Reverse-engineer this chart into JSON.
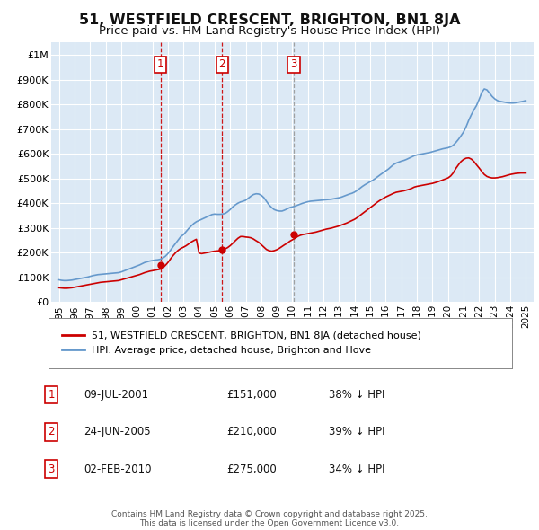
{
  "title": "51, WESTFIELD CRESCENT, BRIGHTON, BN1 8JA",
  "subtitle": "Price paid vs. HM Land Registry's House Price Index (HPI)",
  "title_fontsize": 11.5,
  "subtitle_fontsize": 9.5,
  "background_color": "#ffffff",
  "plot_bg_color": "#dce9f5",
  "grid_color": "#ffffff",
  "xlim": [
    1994.5,
    2025.5
  ],
  "ylim": [
    0,
    1050000
  ],
  "yticks": [
    0,
    100000,
    200000,
    300000,
    400000,
    500000,
    600000,
    700000,
    800000,
    900000,
    1000000
  ],
  "ytick_labels": [
    "£0",
    "£100K",
    "£200K",
    "£300K",
    "£400K",
    "£500K",
    "£600K",
    "£700K",
    "£800K",
    "£900K",
    "£1M"
  ],
  "xticks": [
    1995,
    1996,
    1997,
    1998,
    1999,
    2000,
    2001,
    2002,
    2003,
    2004,
    2005,
    2006,
    2007,
    2008,
    2009,
    2010,
    2011,
    2012,
    2013,
    2014,
    2015,
    2016,
    2017,
    2018,
    2019,
    2020,
    2021,
    2022,
    2023,
    2024,
    2025
  ],
  "transactions": [
    {
      "num": 1,
      "date": "09-JUL-2001",
      "year": 2001.52,
      "price": 151000,
      "pct": "38%",
      "dir": "↓"
    },
    {
      "num": 2,
      "date": "24-JUN-2005",
      "year": 2005.48,
      "price": 210000,
      "pct": "39%",
      "dir": "↓"
    },
    {
      "num": 3,
      "date": "02-FEB-2010",
      "year": 2010.09,
      "price": 275000,
      "pct": "34%",
      "dir": "↓"
    }
  ],
  "legend_red_label": "51, WESTFIELD CRESCENT, BRIGHTON, BN1 8JA (detached house)",
  "legend_blue_label": "HPI: Average price, detached house, Brighton and Hove",
  "footer_text": "Contains HM Land Registry data © Crown copyright and database right 2025.\nThis data is licensed under the Open Government Licence v3.0.",
  "red_color": "#cc0000",
  "blue_color": "#6699cc",
  "marker_box_color": "#cc0000",
  "dashed_color": "#cc0000",
  "dashed3_color": "#999999",
  "hpi_years": [
    1995.0,
    1995.17,
    1995.33,
    1995.5,
    1995.67,
    1995.83,
    1996.0,
    1996.17,
    1996.33,
    1996.5,
    1996.67,
    1996.83,
    1997.0,
    1997.17,
    1997.33,
    1997.5,
    1997.67,
    1997.83,
    1998.0,
    1998.17,
    1998.33,
    1998.5,
    1998.67,
    1998.83,
    1999.0,
    1999.17,
    1999.33,
    1999.5,
    1999.67,
    1999.83,
    2000.0,
    2000.17,
    2000.33,
    2000.5,
    2000.67,
    2000.83,
    2001.0,
    2001.17,
    2001.33,
    2001.5,
    2001.67,
    2001.83,
    2002.0,
    2002.17,
    2002.33,
    2002.5,
    2002.67,
    2002.83,
    2003.0,
    2003.17,
    2003.33,
    2003.5,
    2003.67,
    2003.83,
    2004.0,
    2004.17,
    2004.33,
    2004.5,
    2004.67,
    2004.83,
    2005.0,
    2005.17,
    2005.33,
    2005.5,
    2005.67,
    2005.83,
    2006.0,
    2006.17,
    2006.33,
    2006.5,
    2006.67,
    2006.83,
    2007.0,
    2007.17,
    2007.33,
    2007.5,
    2007.67,
    2007.83,
    2008.0,
    2008.17,
    2008.33,
    2008.5,
    2008.67,
    2008.83,
    2009.0,
    2009.17,
    2009.33,
    2009.5,
    2009.67,
    2009.83,
    2010.0,
    2010.17,
    2010.33,
    2010.5,
    2010.67,
    2010.83,
    2011.0,
    2011.17,
    2011.33,
    2011.5,
    2011.67,
    2011.83,
    2012.0,
    2012.17,
    2012.33,
    2012.5,
    2012.67,
    2012.83,
    2013.0,
    2013.17,
    2013.33,
    2013.5,
    2013.67,
    2013.83,
    2014.0,
    2014.17,
    2014.33,
    2014.5,
    2014.67,
    2014.83,
    2015.0,
    2015.17,
    2015.33,
    2015.5,
    2015.67,
    2015.83,
    2016.0,
    2016.17,
    2016.33,
    2016.5,
    2016.67,
    2016.83,
    2017.0,
    2017.17,
    2017.33,
    2017.5,
    2017.67,
    2017.83,
    2018.0,
    2018.17,
    2018.33,
    2018.5,
    2018.67,
    2018.83,
    2019.0,
    2019.17,
    2019.33,
    2019.5,
    2019.67,
    2019.83,
    2020.0,
    2020.17,
    2020.33,
    2020.5,
    2020.67,
    2020.83,
    2021.0,
    2021.17,
    2021.33,
    2021.5,
    2021.67,
    2021.83,
    2022.0,
    2022.17,
    2022.33,
    2022.5,
    2022.67,
    2022.83,
    2023.0,
    2023.17,
    2023.33,
    2023.5,
    2023.67,
    2023.83,
    2024.0,
    2024.17,
    2024.33,
    2024.5,
    2024.67,
    2024.83,
    2025.0
  ],
  "hpi_values": [
    90000,
    88000,
    87000,
    87000,
    88000,
    89000,
    91000,
    93000,
    95000,
    97000,
    99000,
    101000,
    104000,
    107000,
    109000,
    111000,
    112000,
    113000,
    114000,
    115000,
    116000,
    117000,
    118000,
    119000,
    122000,
    126000,
    130000,
    134000,
    138000,
    142000,
    146000,
    150000,
    155000,
    160000,
    163000,
    166000,
    168000,
    170000,
    171000,
    173000,
    178000,
    185000,
    196000,
    210000,
    224000,
    238000,
    252000,
    265000,
    273000,
    285000,
    297000,
    308000,
    318000,
    325000,
    330000,
    335000,
    340000,
    345000,
    350000,
    354000,
    356000,
    355000,
    355000,
    356000,
    358000,
    365000,
    374000,
    385000,
    393000,
    400000,
    405000,
    408000,
    412000,
    420000,
    428000,
    435000,
    438000,
    437000,
    432000,
    422000,
    408000,
    393000,
    382000,
    374000,
    370000,
    368000,
    368000,
    372000,
    377000,
    382000,
    385000,
    388000,
    392000,
    396000,
    400000,
    403000,
    406000,
    408000,
    409000,
    410000,
    411000,
    412000,
    413000,
    414000,
    415000,
    416000,
    418000,
    420000,
    422000,
    425000,
    429000,
    433000,
    437000,
    440000,
    445000,
    452000,
    460000,
    468000,
    475000,
    481000,
    487000,
    493000,
    500000,
    508000,
    516000,
    523000,
    530000,
    538000,
    547000,
    556000,
    562000,
    566000,
    570000,
    573000,
    577000,
    582000,
    587000,
    592000,
    595000,
    597000,
    599000,
    601000,
    603000,
    605000,
    608000,
    611000,
    614000,
    617000,
    620000,
    622000,
    624000,
    628000,
    634000,
    645000,
    658000,
    672000,
    688000,
    710000,
    735000,
    758000,
    778000,
    795000,
    820000,
    848000,
    862000,
    858000,
    845000,
    832000,
    822000,
    815000,
    812000,
    810000,
    808000,
    806000,
    805000,
    805000,
    806000,
    808000,
    810000,
    812000,
    815000
  ],
  "red_years": [
    1995.0,
    1995.17,
    1995.33,
    1995.5,
    1995.67,
    1995.83,
    1996.0,
    1996.17,
    1996.33,
    1996.5,
    1996.67,
    1996.83,
    1997.0,
    1997.17,
    1997.33,
    1997.5,
    1997.67,
    1997.83,
    1998.0,
    1998.17,
    1998.33,
    1998.5,
    1998.67,
    1998.83,
    1999.0,
    1999.17,
    1999.33,
    1999.5,
    1999.67,
    1999.83,
    2000.0,
    2000.17,
    2000.33,
    2000.5,
    2000.67,
    2000.83,
    2001.0,
    2001.17,
    2001.33,
    2001.5,
    2001.67,
    2001.83,
    2002.0,
    2002.17,
    2002.33,
    2002.5,
    2002.67,
    2002.83,
    2003.0,
    2003.17,
    2003.33,
    2003.5,
    2003.67,
    2003.83,
    2004.0,
    2004.17,
    2004.33,
    2004.5,
    2004.67,
    2004.83,
    2005.0,
    2005.17,
    2005.33,
    2005.5,
    2005.67,
    2005.83,
    2006.0,
    2006.17,
    2006.33,
    2006.5,
    2006.67,
    2006.83,
    2007.0,
    2007.17,
    2007.33,
    2007.5,
    2007.67,
    2007.83,
    2008.0,
    2008.17,
    2008.33,
    2008.5,
    2008.67,
    2008.83,
    2009.0,
    2009.17,
    2009.33,
    2009.5,
    2009.67,
    2009.83,
    2010.0,
    2010.17,
    2010.33,
    2010.5,
    2010.67,
    2010.83,
    2011.0,
    2011.17,
    2011.33,
    2011.5,
    2011.67,
    2011.83,
    2012.0,
    2012.17,
    2012.33,
    2012.5,
    2012.67,
    2012.83,
    2013.0,
    2013.17,
    2013.33,
    2013.5,
    2013.67,
    2013.83,
    2014.0,
    2014.17,
    2014.33,
    2014.5,
    2014.67,
    2014.83,
    2015.0,
    2015.17,
    2015.33,
    2015.5,
    2015.67,
    2015.83,
    2016.0,
    2016.17,
    2016.33,
    2016.5,
    2016.67,
    2016.83,
    2017.0,
    2017.17,
    2017.33,
    2017.5,
    2017.67,
    2017.83,
    2018.0,
    2018.17,
    2018.33,
    2018.5,
    2018.67,
    2018.83,
    2019.0,
    2019.17,
    2019.33,
    2019.5,
    2019.67,
    2019.83,
    2020.0,
    2020.17,
    2020.33,
    2020.5,
    2020.67,
    2020.83,
    2021.0,
    2021.17,
    2021.33,
    2021.5,
    2021.67,
    2021.83,
    2022.0,
    2022.17,
    2022.33,
    2022.5,
    2022.67,
    2022.83,
    2023.0,
    2023.17,
    2023.33,
    2023.5,
    2023.67,
    2023.83,
    2024.0,
    2024.17,
    2024.33,
    2024.5,
    2024.67,
    2024.83,
    2025.0
  ],
  "red_values": [
    58000,
    57000,
    56000,
    56000,
    57000,
    58000,
    60000,
    62000,
    64000,
    66000,
    68000,
    70000,
    72000,
    74000,
    76000,
    78000,
    80000,
    81000,
    82000,
    83000,
    84000,
    85000,
    86000,
    87000,
    90000,
    93000,
    96000,
    99000,
    102000,
    105000,
    108000,
    111000,
    115000,
    119000,
    122000,
    125000,
    127000,
    129000,
    131000,
    133000,
    140000,
    148000,
    160000,
    175000,
    188000,
    200000,
    210000,
    217000,
    222000,
    228000,
    235000,
    243000,
    249000,
    254000,
    198000,
    196000,
    198000,
    200000,
    202000,
    204000,
    206000,
    207000,
    208000,
    210000,
    215000,
    220000,
    228000,
    238000,
    248000,
    258000,
    265000,
    265000,
    263000,
    262000,
    260000,
    255000,
    248000,
    242000,
    232000,
    222000,
    213000,
    208000,
    206000,
    208000,
    212000,
    218000,
    225000,
    232000,
    238000,
    246000,
    252000,
    258000,
    265000,
    270000,
    273000,
    275000,
    277000,
    279000,
    281000,
    283000,
    286000,
    289000,
    292000,
    295000,
    297000,
    299000,
    302000,
    305000,
    308000,
    312000,
    316000,
    320000,
    325000,
    330000,
    335000,
    342000,
    350000,
    358000,
    366000,
    374000,
    382000,
    390000,
    398000,
    406000,
    413000,
    419000,
    425000,
    430000,
    435000,
    440000,
    444000,
    446000,
    448000,
    450000,
    453000,
    456000,
    460000,
    465000,
    468000,
    470000,
    472000,
    474000,
    476000,
    478000,
    480000,
    483000,
    486000,
    490000,
    494000,
    498000,
    502000,
    510000,
    522000,
    540000,
    555000,
    568000,
    577000,
    582000,
    583000,
    578000,
    568000,
    555000,
    542000,
    528000,
    516000,
    508000,
    504000,
    502000,
    502000,
    503000,
    505000,
    507000,
    510000,
    513000,
    516000,
    518000,
    520000,
    521000,
    522000,
    522000,
    522000
  ]
}
